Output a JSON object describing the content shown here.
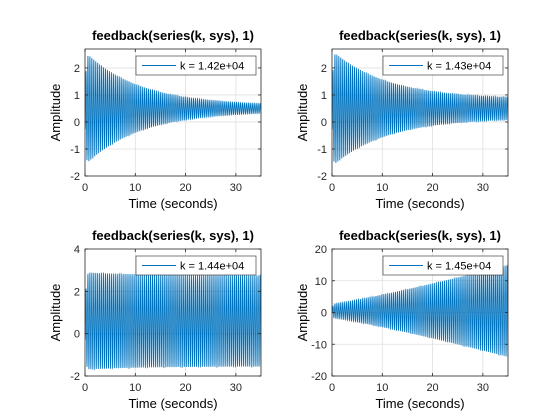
{
  "chart_data": [
    {
      "type": "line",
      "title": "feedback(series(k, sys), 1)",
      "xlabel": "Time (seconds)",
      "ylabel": "Amplitude",
      "xlim": [
        0,
        35
      ],
      "ylim": [
        -2,
        2.7
      ],
      "xticks": [
        0,
        10,
        20,
        30
      ],
      "yticks": [
        -2,
        -1,
        0,
        1,
        2
      ],
      "grid": true,
      "legend_position": "top-right",
      "series": [
        {
          "name": "k = 1.42e+04",
          "color": "#0072bd",
          "response": {
            "center": 0.5,
            "amp_start": 2.1,
            "amp_end": 0.1,
            "amp_shape": "decay",
            "cycles": 90,
            "rise_time": 0.15
          }
        }
      ]
    },
    {
      "type": "line",
      "title": "feedback(series(k, sys), 1)",
      "xlabel": "Time (seconds)",
      "ylabel": "Amplitude",
      "xlim": [
        0,
        35
      ],
      "ylim": [
        -2,
        2.7
      ],
      "xticks": [
        0,
        10,
        20,
        30
      ],
      "yticks": [
        -2,
        -1,
        0,
        1,
        2
      ],
      "grid": true,
      "legend_position": "top-right",
      "series": [
        {
          "name": "k = 1.43e+04",
          "color": "#0072bd",
          "response": {
            "center": 0.5,
            "amp_start": 2.15,
            "amp_end": 0.35,
            "amp_shape": "decay",
            "cycles": 90,
            "rise_time": 0.15
          }
        }
      ]
    },
    {
      "type": "line",
      "title": "feedback(series(k, sys), 1)",
      "xlabel": "Time (seconds)",
      "ylabel": "Amplitude",
      "xlim": [
        0,
        35
      ],
      "ylim": [
        -2,
        4
      ],
      "xticks": [
        0,
        10,
        20,
        30
      ],
      "yticks": [
        -2,
        0,
        2,
        4
      ],
      "grid": true,
      "legend_position": "top-right",
      "series": [
        {
          "name": "k = 1.44e+04",
          "color": "#0072bd",
          "response": {
            "center": 0.6,
            "amp_start": 2.3,
            "amp_end": 2.15,
            "amp_shape": "decay",
            "cycles": 90,
            "rise_time": 0.15
          }
        }
      ]
    },
    {
      "type": "line",
      "title": "feedback(series(k, sys), 1)",
      "xlabel": "Time (seconds)",
      "ylabel": "Amplitude",
      "xlim": [
        0,
        35
      ],
      "ylim": [
        -20,
        20
      ],
      "xticks": [
        0,
        10,
        20,
        30
      ],
      "yticks": [
        -20,
        -10,
        0,
        10,
        20
      ],
      "grid": true,
      "legend_position": "top-right",
      "series": [
        {
          "name": "k = 1.45e+04",
          "color": "#0072bd",
          "response": {
            "center": 0.5,
            "amp_start": 2.2,
            "amp_end": 14.5,
            "amp_shape": "grow",
            "cycles": 90,
            "rise_time": 0.15
          }
        }
      ]
    }
  ]
}
